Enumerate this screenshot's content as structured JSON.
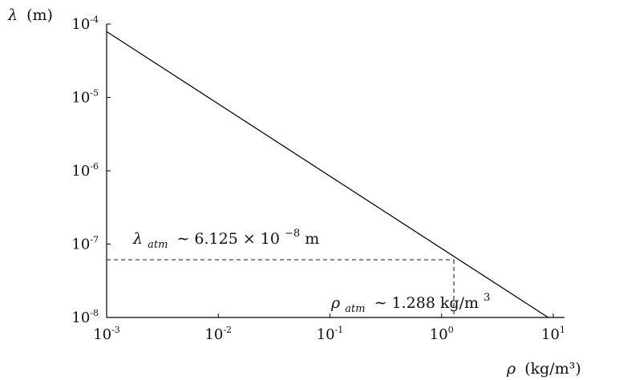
{
  "chart_data": {
    "type": "line",
    "x_scale": "log",
    "y_scale": "log",
    "xlim": [
      0.001,
      10
    ],
    "ylim": [
      1e-08,
      0.0001
    ],
    "xlabel": {
      "symbol": "ρ",
      "unit": "(kg/m³)"
    },
    "ylabel": {
      "symbol": "λ",
      "unit": "(m)"
    },
    "x_ticks": [
      {
        "value": 0.001,
        "base": "10",
        "exp": "-3"
      },
      {
        "value": 0.01,
        "base": "10",
        "exp": "-2"
      },
      {
        "value": 0.1,
        "base": "10",
        "exp": "-1"
      },
      {
        "value": 1,
        "base": "10",
        "exp": "0"
      },
      {
        "value": 10,
        "base": "10",
        "exp": "1"
      }
    ],
    "y_ticks": [
      {
        "value": 1e-08,
        "base": "10",
        "exp": "-8"
      },
      {
        "value": 1e-07,
        "base": "10",
        "exp": "-7"
      },
      {
        "value": 1e-06,
        "base": "10",
        "exp": "-6"
      },
      {
        "value": 1e-05,
        "base": "10",
        "exp": "-5"
      },
      {
        "value": 0.0001,
        "base": "10",
        "exp": "-4"
      }
    ],
    "series": [
      {
        "x": [
          0.001,
          9.0
        ],
        "y": [
          7.9e-05,
          1e-08
        ],
        "color": "#000000"
      }
    ],
    "reference_point": {
      "x": 1.288,
      "y": 6.125e-08,
      "color": "#3a3aa8"
    },
    "annotations": {
      "lambda_atm": {
        "symbol": "λ",
        "sub": "atm",
        "relation": "∼ 6.125 × 10",
        "exp": "−8",
        "unit": " m"
      },
      "rho_atm": {
        "symbol": "ρ",
        "sub": "atm",
        "relation": "∼ 1.288 kg/m",
        "exp": "3"
      }
    },
    "grid": false
  }
}
